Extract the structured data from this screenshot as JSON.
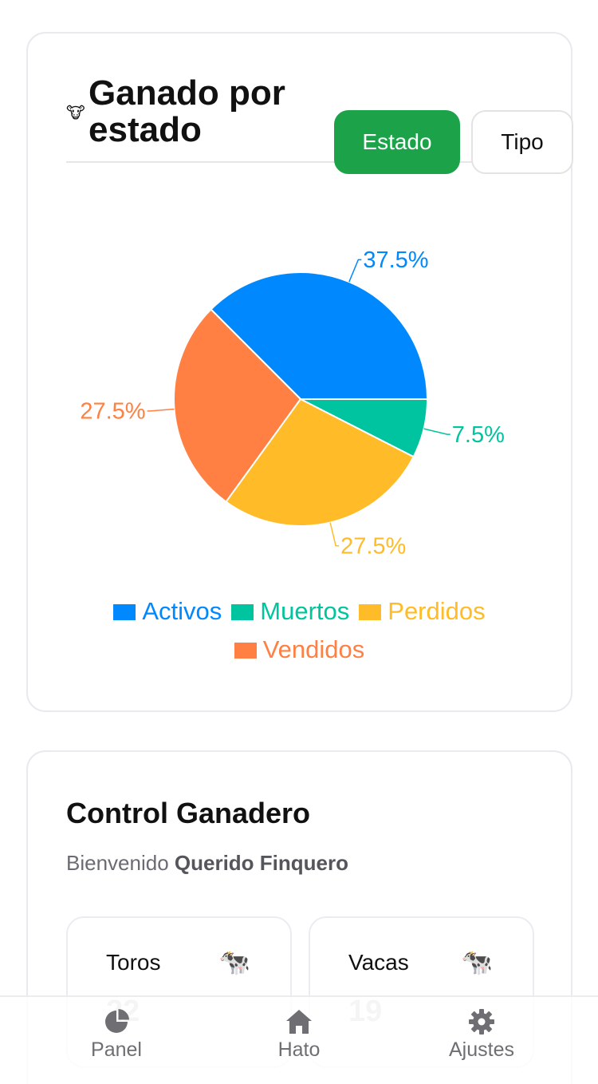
{
  "chart_card": {
    "title": "Ganado por estado",
    "title_icon": "cow-face-icon",
    "buttons": {
      "estado": "Estado",
      "tipo": "Tipo"
    },
    "active_button_color": "#1ca34a"
  },
  "chart_data": {
    "type": "pie",
    "categories": [
      "Activos",
      "Vendidos",
      "Perdidos",
      "Muertos"
    ],
    "values": [
      37.5,
      27.5,
      27.5,
      7.5
    ],
    "labels": [
      "37.5%",
      "27.5%",
      "27.5%",
      "7.5%"
    ],
    "colors": [
      "#0088fe",
      "#ff8042",
      "#ffbb28",
      "#00c49f"
    ],
    "legend": [
      "Activos",
      "Muertos",
      "Perdidos",
      "Vendidos"
    ],
    "legend_colors": [
      "#0088fe",
      "#00c49f",
      "#ffbb28",
      "#ff8042"
    ],
    "legend_position": "bottom"
  },
  "control": {
    "title": "Control Ganadero",
    "welcome_prefix": "Bienvenido",
    "user_name": "Querido Finquero",
    "stats": [
      {
        "label": "Toros",
        "value": "22",
        "icon": "cow-icon"
      },
      {
        "label": "Vacas",
        "value": "19",
        "icon": "cow-icon"
      }
    ]
  },
  "tabbar": {
    "items": [
      {
        "label": "Panel",
        "icon": "pie-chart-icon"
      },
      {
        "label": "Hato",
        "icon": "home-icon"
      },
      {
        "label": "Ajustes",
        "icon": "gear-icon"
      }
    ]
  }
}
